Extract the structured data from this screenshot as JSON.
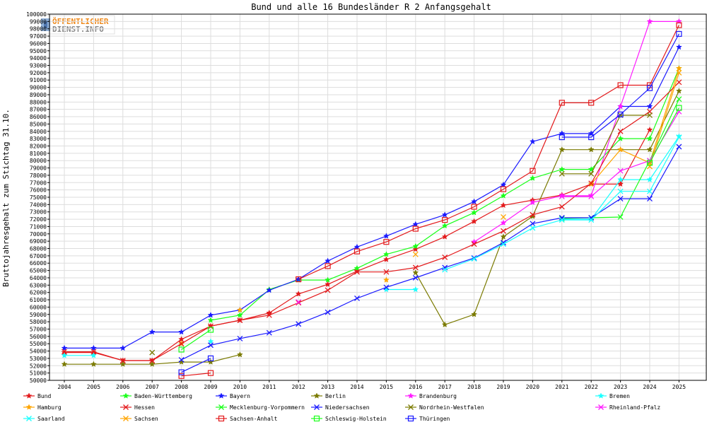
{
  "logo": {
    "line1": "ÖFFENTLICHER",
    "line2": "DIENST.INFO"
  },
  "chart_data": {
    "type": "line",
    "title": "Bund und alle 16 Bundesländer R 2 Anfangsgehalt",
    "xlabel": "",
    "ylabel": "Bruttojahresgehalt zum Stichtag 31.10.",
    "ylim": [
      50000,
      100000
    ],
    "y_tick_step": 1000,
    "grid": true,
    "legend_position": "bottom",
    "categories": [
      "2004",
      "2005",
      "2006",
      "2007",
      "2008",
      "2009",
      "2010",
      "2011",
      "2012",
      "2013",
      "2014",
      "2015",
      "2016",
      "2017",
      "2018",
      "2019",
      "2020",
      "2021",
      "2022",
      "2023",
      "2024",
      "2025"
    ],
    "series": [
      {
        "name": "Bund",
        "color": "#e31a1c",
        "marker": "star",
        "values": [
          53800,
          53800,
          52700,
          52700,
          55600,
          57400,
          58200,
          59200,
          61800,
          63100,
          64900,
          66500,
          67900,
          69600,
          71700,
          73900,
          74600,
          75300,
          76800,
          76800,
          84200,
          null
        ]
      },
      {
        "name": "Baden-Württemberg",
        "color": "#1aff1a",
        "marker": "star",
        "values": [
          null,
          null,
          null,
          null,
          null,
          58200,
          58900,
          62400,
          63700,
          63700,
          65300,
          67200,
          68300,
          71100,
          72900,
          75200,
          77600,
          78800,
          78800,
          83000,
          83000,
          92600
        ]
      },
      {
        "name": "Bayern",
        "color": "#1a1aff",
        "marker": "star",
        "values": [
          54400,
          54400,
          54400,
          56600,
          56600,
          58900,
          59600,
          62300,
          63800,
          66300,
          68200,
          69700,
          71300,
          72600,
          74400,
          76700,
          82600,
          83700,
          83700,
          87400,
          87400,
          95500
        ]
      },
      {
        "name": "Berlin",
        "color": "#7a7a00",
        "marker": "star",
        "values": [
          52200,
          52200,
          52200,
          52200,
          52500,
          52500,
          53500,
          null,
          null,
          null,
          null,
          null,
          64700,
          57600,
          59000,
          69600,
          72400,
          81500,
          81500,
          81500,
          81500,
          89500
        ]
      },
      {
        "name": "Brandenburg",
        "color": "#ff1aff",
        "marker": "star",
        "values": [
          null,
          null,
          null,
          null,
          null,
          null,
          null,
          null,
          null,
          null,
          null,
          null,
          null,
          null,
          68900,
          71500,
          74300,
          75200,
          75200,
          87400,
          99000,
          99000
        ]
      },
      {
        "name": "Bremen",
        "color": "#1affff",
        "marker": "star",
        "values": [
          53400,
          53400,
          null,
          null,
          null,
          55300,
          null,
          null,
          null,
          null,
          null,
          62400,
          62400,
          null,
          null,
          null,
          null,
          72000,
          72000,
          77400,
          77400,
          83300
        ]
      },
      {
        "name": "Hamburg",
        "color": "#ffa500",
        "marker": "star",
        "values": [
          null,
          null,
          null,
          null,
          55000,
          null,
          59600,
          null,
          null,
          null,
          null,
          63700,
          null,
          null,
          null,
          null,
          null,
          null,
          76800,
          81500,
          79700,
          92600
        ]
      },
      {
        "name": "Hessen",
        "color": "#e31a1c",
        "marker": "cross",
        "values": [
          53900,
          53900,
          52700,
          52700,
          55000,
          57400,
          58200,
          58900,
          60600,
          62300,
          64800,
          64800,
          65400,
          66800,
          68600,
          70400,
          72600,
          73700,
          76900,
          84000,
          86700,
          90700
        ]
      },
      {
        "name": "Mecklenburg-Vorpommern",
        "color": "#1aff1a",
        "marker": "cross",
        "values": [
          null,
          null,
          null,
          null,
          null,
          null,
          null,
          null,
          null,
          null,
          null,
          null,
          null,
          null,
          null,
          null,
          null,
          72100,
          72200,
          72300,
          80000,
          88400
        ]
      },
      {
        "name": "Niedersachsen",
        "color": "#1a1aff",
        "marker": "cross",
        "values": [
          null,
          null,
          null,
          null,
          52800,
          54800,
          55700,
          56500,
          57700,
          59300,
          61200,
          62700,
          64000,
          65400,
          66700,
          68800,
          71400,
          72200,
          72200,
          74800,
          74800,
          81900
        ]
      },
      {
        "name": "Nordrhein-Westfalen",
        "color": "#7a7a00",
        "marker": "cross",
        "values": [
          null,
          null,
          null,
          53800,
          null,
          null,
          null,
          null,
          null,
          null,
          null,
          null,
          null,
          null,
          null,
          null,
          null,
          78200,
          78200,
          86200,
          86200,
          null
        ]
      },
      {
        "name": "Rheinland-Pfalz",
        "color": "#ff1aff",
        "marker": "cross",
        "values": [
          null,
          null,
          null,
          null,
          null,
          null,
          null,
          null,
          60700,
          null,
          null,
          null,
          null,
          null,
          null,
          null,
          null,
          75100,
          75100,
          78600,
          80000,
          86700
        ]
      },
      {
        "name": "Saarland",
        "color": "#1affff",
        "marker": "cross",
        "values": [
          null,
          null,
          null,
          null,
          null,
          null,
          null,
          null,
          null,
          null,
          null,
          null,
          null,
          65100,
          66600,
          68600,
          70800,
          71900,
          71900,
          75800,
          75800,
          83200
        ]
      },
      {
        "name": "Sachsen",
        "color": "#ffa500",
        "marker": "cross",
        "values": [
          null,
          null,
          null,
          null,
          null,
          null,
          null,
          null,
          null,
          null,
          null,
          null,
          67200,
          null,
          null,
          72300,
          null,
          null,
          null,
          null,
          79200,
          92000
        ]
      },
      {
        "name": "Sachsen-Anhalt",
        "color": "#e31a1c",
        "marker": "square",
        "values": [
          null,
          null,
          null,
          null,
          50600,
          51000,
          null,
          null,
          63800,
          65600,
          67600,
          68900,
          70700,
          71900,
          73700,
          76100,
          78600,
          87900,
          87900,
          90300,
          90300,
          98500
        ]
      },
      {
        "name": "Schleswig-Holstein",
        "color": "#1aff1a",
        "marker": "square",
        "values": [
          null,
          null,
          null,
          null,
          54200,
          56900,
          null,
          null,
          null,
          null,
          null,
          null,
          null,
          null,
          null,
          null,
          null,
          null,
          null,
          null,
          79700,
          87200
        ]
      },
      {
        "name": "Thüringen",
        "color": "#1a1aff",
        "marker": "square",
        "values": [
          null,
          null,
          null,
          null,
          51100,
          53000,
          null,
          null,
          null,
          null,
          null,
          null,
          null,
          null,
          null,
          null,
          null,
          83200,
          83200,
          86300,
          89900,
          97300
        ]
      }
    ]
  }
}
